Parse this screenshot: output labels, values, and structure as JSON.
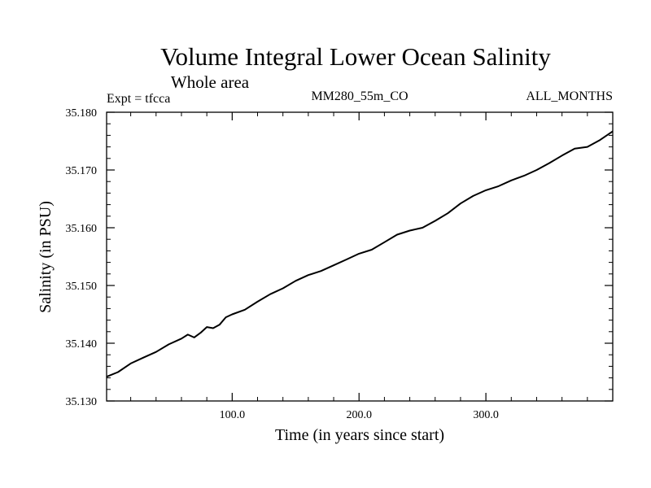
{
  "chart_data": {
    "type": "line",
    "title": "Volume Integral Lower Ocean Salinity",
    "subtitle": "Whole area",
    "left_label": "Expt = tfcca",
    "center_label": "MM280_55m_CO",
    "right_label": "ALL_MONTHS",
    "xlabel": "Time (in years since start)",
    "ylabel": "Salinity (in PSU)",
    "xlim": [
      1,
      400
    ],
    "ylim": [
      35.13,
      35.18
    ],
    "x_ticks": [
      100,
      200,
      300
    ],
    "x_tick_labels": [
      "100.0",
      "200.0",
      "300.0"
    ],
    "y_ticks": [
      35.13,
      35.14,
      35.15,
      35.16,
      35.17,
      35.18
    ],
    "y_tick_labels": [
      "35.130",
      "35.140",
      "35.150",
      "35.160",
      "35.170",
      "35.180"
    ],
    "grid": false,
    "line_color": "#000000",
    "series": [
      {
        "x": [
          1,
          10,
          20,
          30,
          40,
          50,
          60,
          65,
          70,
          75,
          80,
          85,
          90,
          95,
          100,
          110,
          120,
          130,
          140,
          150,
          160,
          170,
          180,
          190,
          200,
          210,
          220,
          230,
          240,
          250,
          260,
          270,
          280,
          290,
          300,
          310,
          320,
          330,
          340,
          350,
          360,
          370,
          380,
          390,
          400
        ],
        "values": [
          35.1342,
          35.135,
          35.1365,
          35.1375,
          35.1385,
          35.1398,
          35.1408,
          35.1415,
          35.141,
          35.1418,
          35.1428,
          35.1426,
          35.1432,
          35.1445,
          35.145,
          35.1458,
          35.1472,
          35.1485,
          35.1495,
          35.1508,
          35.1518,
          35.1525,
          35.1535,
          35.1545,
          35.1555,
          35.1562,
          35.1575,
          35.1588,
          35.1595,
          35.16,
          35.1612,
          35.1625,
          35.1642,
          35.1655,
          35.1665,
          35.1672,
          35.1682,
          35.169,
          35.17,
          35.1712,
          35.1725,
          35.1737,
          35.174,
          35.1752,
          35.1767
        ]
      }
    ]
  }
}
